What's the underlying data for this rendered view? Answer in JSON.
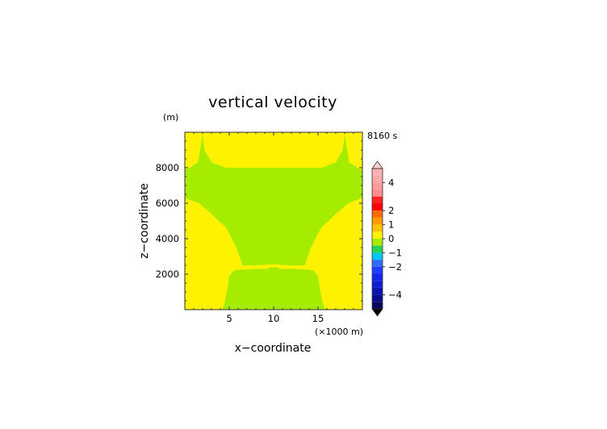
{
  "chart_data": {
    "type": "heatmap",
    "title": "vertical velocity",
    "xlabel": "x−coordinate",
    "ylabel": "z−coordinate",
    "x_units": "(×1000 m)",
    "y_units": "(m)",
    "time_label": "8160 s",
    "x_range": [
      0,
      20
    ],
    "y_range": [
      0,
      10000
    ],
    "x_ticks": [
      5,
      10,
      15
    ],
    "y_ticks": [
      2000,
      4000,
      6000,
      8000
    ],
    "x_tick_labels": [
      "5",
      "10",
      "15"
    ],
    "y_tick_labels": [
      "2000",
      "4000",
      "6000",
      "8000"
    ],
    "background_level": "0 to 0.5",
    "regions": [
      {
        "level": "-0.5 to 0",
        "color": "#a6ec00",
        "x": [
          2,
          2.2,
          3,
          4.6,
          15.4,
          17,
          17.8,
          18,
          18,
          18.5,
          19.8,
          20,
          20,
          19.5,
          18.4,
          17,
          16.2,
          15.5,
          15,
          14.2,
          13.5,
          12,
          10,
          8,
          6.5,
          5.8,
          5,
          4.5,
          3.8,
          3,
          1.6,
          0.5,
          0,
          0,
          0.2,
          1.5,
          2
        ],
        "y": [
          9900,
          9000,
          8300,
          8000,
          8000,
          8300,
          9000,
          9900,
          9900,
          8300,
          7900,
          7900,
          6300,
          6200,
          6000,
          5400,
          5000,
          4700,
          4300,
          3500,
          2500,
          2500,
          2550,
          2500,
          2500,
          3500,
          4300,
          4700,
          5000,
          5400,
          6000,
          6200,
          6300,
          7900,
          7900,
          8300,
          9900
        ]
      },
      {
        "level": "-0.5 to 0",
        "color": "#a6ec00",
        "x": [
          5,
          5.2,
          6,
          8,
          9,
          9.5,
          10.5,
          11,
          12,
          14,
          14.8,
          15,
          15.1,
          15.3,
          15.8,
          15.5,
          15.2,
          15,
          14.5,
          14,
          12,
          10,
          8,
          6,
          5.5,
          5,
          4.8,
          4.5,
          4.2,
          4.7,
          4.9,
          5
        ],
        "y": [
          0,
          1800,
          2150,
          2200,
          2200,
          2350,
          2350,
          2200,
          2200,
          2150,
          1800,
          0,
          0,
          0,
          0,
          400,
          1200,
          1900,
          2200,
          2250,
          2300,
          2300,
          2300,
          2250,
          2200,
          1900,
          1200,
          400,
          0,
          0,
          0,
          0
        ]
      },
      {
        "level": "-0.5 to 0",
        "color": "#a6ec00",
        "x": [
          5,
          5.1,
          5.6,
          8,
          9.2,
          9.6,
          10.4,
          10.8,
          12,
          14.4,
          14.9,
          15,
          5
        ],
        "y": [
          0,
          1800,
          2200,
          2300,
          2250,
          2400,
          2400,
          2250,
          2300,
          2200,
          1800,
          0,
          0
        ]
      }
    ],
    "colorbar": {
      "ticks": [
        4,
        2,
        1,
        0,
        -1,
        -2,
        -4
      ],
      "tick_labels": [
        "4",
        "2",
        "1",
        "0",
        "−1",
        "−2",
        "−4"
      ],
      "bands": [
        {
          "from": 5.0,
          "to": 4.5,
          "color": "#ffb0b0"
        },
        {
          "from": 4.5,
          "to": 4.0,
          "color": "#ffa8a8"
        },
        {
          "from": 4.0,
          "to": 3.5,
          "color": "#ff9a9a"
        },
        {
          "from": 3.5,
          "to": 3.0,
          "color": "#ff8c8c"
        },
        {
          "from": 3.0,
          "to": 2.5,
          "color": "#ff2020"
        },
        {
          "from": 2.5,
          "to": 2.0,
          "color": "#ff0000"
        },
        {
          "from": 2.0,
          "to": 1.5,
          "color": "#ff6a00"
        },
        {
          "from": 1.5,
          "to": 1.0,
          "color": "#ff9a00"
        },
        {
          "from": 1.0,
          "to": 0.5,
          "color": "#ffc000"
        },
        {
          "from": 0.5,
          "to": 0.0,
          "color": "#fff200"
        },
        {
          "from": 0.0,
          "to": -0.5,
          "color": "#a6ec00"
        },
        {
          "from": -0.5,
          "to": -1.0,
          "color": "#28d250"
        },
        {
          "from": -1.0,
          "to": -1.5,
          "color": "#00c8f0"
        },
        {
          "from": -1.5,
          "to": -2.0,
          "color": "#2f6bff"
        },
        {
          "from": -2.0,
          "to": -2.5,
          "color": "#1f3cff"
        },
        {
          "from": -2.5,
          "to": -3.0,
          "color": "#1428e6"
        },
        {
          "from": -3.0,
          "to": -3.5,
          "color": "#0f1ecc"
        },
        {
          "from": -3.5,
          "to": -4.0,
          "color": "#0a14b0"
        },
        {
          "from": -4.0,
          "to": -4.5,
          "color": "#060c8c"
        },
        {
          "from": -4.5,
          "to": -5.0,
          "color": "#040660"
        }
      ],
      "over_color": "#ffd0d0",
      "under_color": "#000000"
    },
    "colors": {
      "positive_weak": "#fff200",
      "negative_weak": "#a6ec00"
    }
  }
}
